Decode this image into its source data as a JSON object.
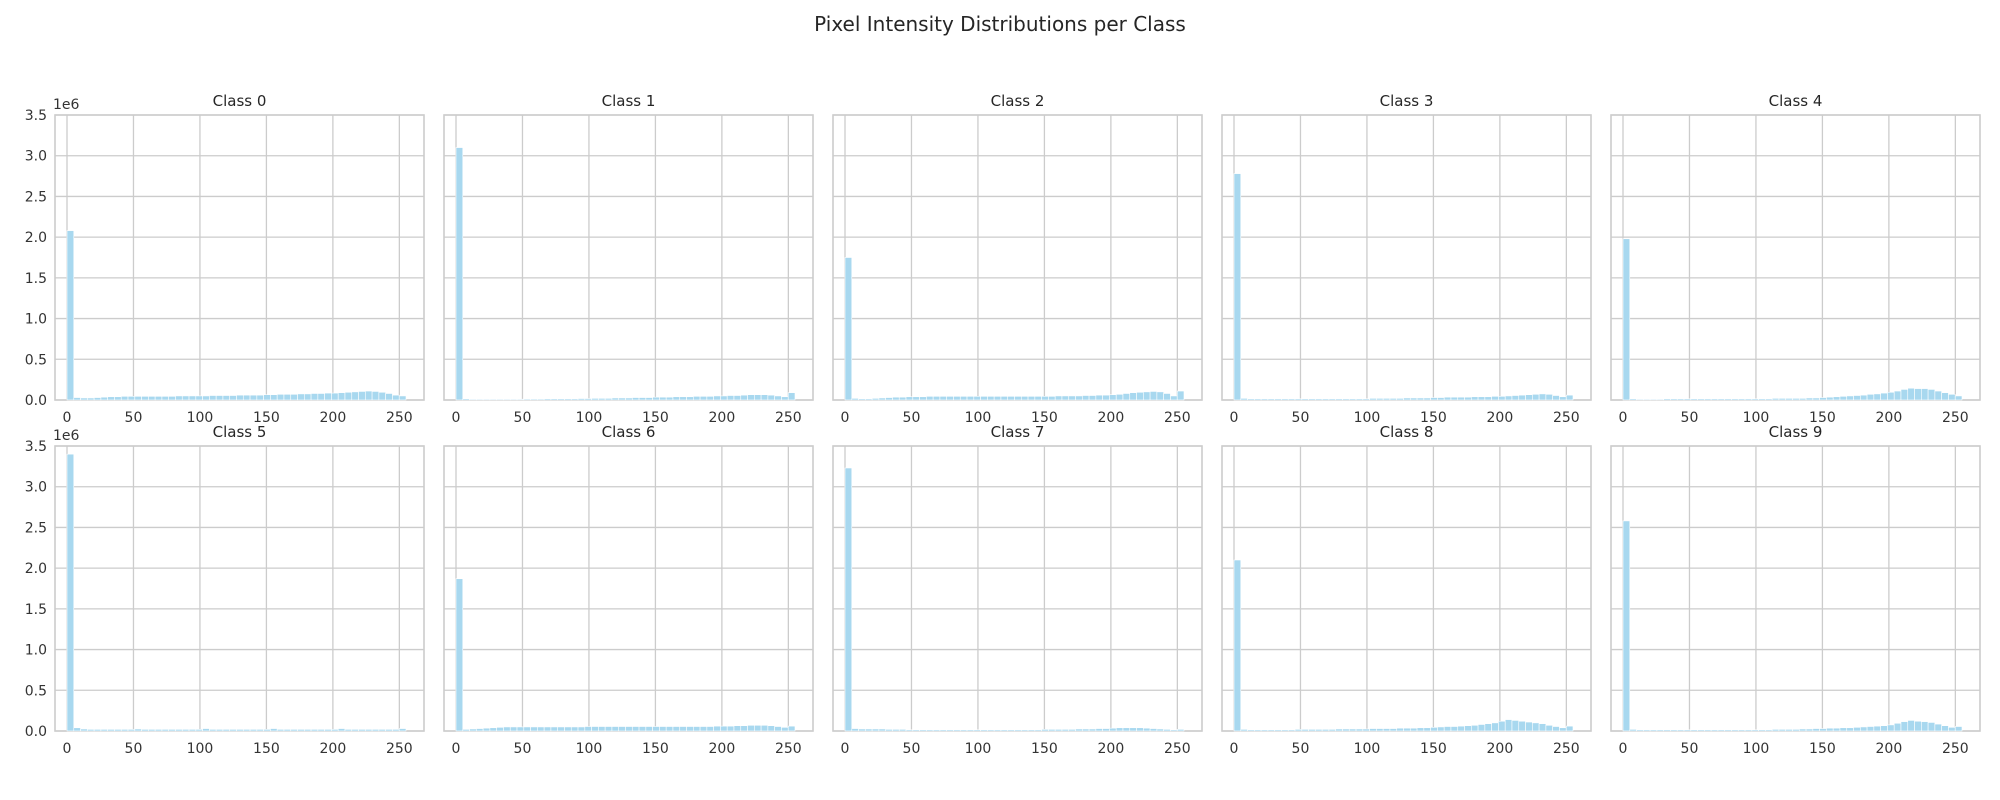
{
  "figure": {
    "title": "Pixel Intensity Distributions per Class"
  },
  "colors": {
    "bar": "#a8d8ef",
    "grid": "#cccccc",
    "frame": "#cccccc",
    "text": "#262626"
  },
  "chart_data": {
    "type": "bar",
    "grid": true,
    "bins": 50,
    "x_range": [
      0,
      255
    ],
    "y_range": [
      0,
      3500000
    ],
    "y_offset_label": "1e6",
    "x_ticks": [
      0,
      50,
      100,
      150,
      200,
      250
    ],
    "x_tick_labels": [
      "0",
      "50",
      "100",
      "150",
      "200",
      "250"
    ],
    "y_ticks": [
      0,
      500000,
      1000000,
      1500000,
      2000000,
      2500000,
      3000000,
      3500000
    ],
    "y_tick_labels": [
      "0.0",
      "0.5",
      "1.0",
      "1.5",
      "2.0",
      "2.5",
      "3.0",
      "3.5"
    ],
    "panels": [
      {
        "title": "Class 0",
        "values": [
          2080000,
          30000,
          25000,
          25000,
          30000,
          35000,
          40000,
          40000,
          45000,
          45000,
          45000,
          45000,
          45000,
          45000,
          45000,
          45000,
          50000,
          50000,
          50000,
          50000,
          50000,
          55000,
          55000,
          55000,
          55000,
          60000,
          60000,
          60000,
          60000,
          65000,
          65000,
          70000,
          70000,
          70000,
          75000,
          75000,
          80000,
          80000,
          85000,
          85000,
          90000,
          95000,
          100000,
          105000,
          110000,
          105000,
          95000,
          80000,
          60000,
          50000
        ]
      },
      {
        "title": "Class 1",
        "values": [
          3100000,
          15000,
          10000,
          10000,
          10000,
          10000,
          10000,
          10000,
          10000,
          10000,
          12000,
          12000,
          12000,
          15000,
          15000,
          15000,
          15000,
          15000,
          18000,
          18000,
          20000,
          20000,
          20000,
          25000,
          25000,
          25000,
          30000,
          30000,
          30000,
          35000,
          35000,
          35000,
          40000,
          40000,
          40000,
          45000,
          45000,
          45000,
          50000,
          50000,
          55000,
          55000,
          60000,
          65000,
          65000,
          65000,
          60000,
          50000,
          40000,
          90000
        ]
      },
      {
        "title": "Class 2",
        "values": [
          1750000,
          20000,
          15000,
          15000,
          20000,
          25000,
          30000,
          35000,
          35000,
          40000,
          40000,
          40000,
          45000,
          45000,
          45000,
          45000,
          45000,
          45000,
          45000,
          45000,
          45000,
          45000,
          45000,
          45000,
          45000,
          45000,
          45000,
          45000,
          45000,
          45000,
          45000,
          50000,
          50000,
          50000,
          50000,
          55000,
          55000,
          60000,
          60000,
          65000,
          70000,
          80000,
          90000,
          95000,
          100000,
          105000,
          100000,
          80000,
          50000,
          110000
        ]
      },
      {
        "title": "Class 3",
        "values": [
          2780000,
          20000,
          15000,
          15000,
          15000,
          15000,
          15000,
          15000,
          15000,
          15000,
          15000,
          15000,
          15000,
          15000,
          15000,
          15000,
          15000,
          15000,
          15000,
          15000,
          20000,
          20000,
          20000,
          20000,
          20000,
          25000,
          25000,
          25000,
          25000,
          30000,
          30000,
          35000,
          35000,
          35000,
          35000,
          40000,
          40000,
          40000,
          45000,
          45000,
          50000,
          55000,
          60000,
          65000,
          70000,
          75000,
          70000,
          55000,
          40000,
          60000
        ]
      },
      {
        "title": "Class 4",
        "values": [
          1980000,
          15000,
          10000,
          10000,
          10000,
          10000,
          15000,
          15000,
          15000,
          15000,
          15000,
          15000,
          15000,
          15000,
          15000,
          15000,
          15000,
          15000,
          15000,
          15000,
          15000,
          15000,
          20000,
          20000,
          20000,
          20000,
          20000,
          25000,
          25000,
          30000,
          35000,
          40000,
          45000,
          50000,
          55000,
          60000,
          70000,
          75000,
          85000,
          95000,
          110000,
          130000,
          145000,
          140000,
          140000,
          130000,
          110000,
          90000,
          70000,
          50000
        ]
      },
      {
        "title": "Class 5",
        "values": [
          3400000,
          40000,
          25000,
          20000,
          20000,
          20000,
          20000,
          20000,
          20000,
          20000,
          25000,
          20000,
          20000,
          20000,
          20000,
          20000,
          20000,
          20000,
          20000,
          20000,
          30000,
          20000,
          20000,
          20000,
          20000,
          20000,
          20000,
          20000,
          20000,
          20000,
          30000,
          20000,
          20000,
          20000,
          20000,
          20000,
          20000,
          20000,
          20000,
          20000,
          30000,
          20000,
          20000,
          20000,
          20000,
          20000,
          20000,
          20000,
          20000,
          30000
        ]
      },
      {
        "title": "Class 6",
        "values": [
          1870000,
          20000,
          25000,
          30000,
          35000,
          40000,
          45000,
          50000,
          50000,
          50000,
          50000,
          50000,
          50000,
          50000,
          50000,
          50000,
          50000,
          50000,
          50000,
          55000,
          55000,
          55000,
          55000,
          55000,
          55000,
          55000,
          55000,
          55000,
          55000,
          55000,
          55000,
          55000,
          55000,
          55000,
          55000,
          55000,
          55000,
          55000,
          60000,
          60000,
          60000,
          65000,
          65000,
          70000,
          70000,
          70000,
          65000,
          55000,
          45000,
          60000
        ]
      },
      {
        "title": "Class 7",
        "values": [
          3230000,
          30000,
          25000,
          25000,
          25000,
          25000,
          20000,
          20000,
          20000,
          15000,
          15000,
          15000,
          15000,
          15000,
          15000,
          15000,
          15000,
          15000,
          15000,
          15000,
          15000,
          15000,
          15000,
          15000,
          15000,
          15000,
          15000,
          15000,
          15000,
          20000,
          20000,
          20000,
          20000,
          20000,
          25000,
          25000,
          25000,
          30000,
          30000,
          35000,
          40000,
          40000,
          40000,
          40000,
          35000,
          30000,
          25000,
          20000,
          15000,
          20000
        ]
      },
      {
        "title": "Class 8",
        "values": [
          2100000,
          20000,
          15000,
          15000,
          15000,
          15000,
          15000,
          15000,
          15000,
          20000,
          20000,
          20000,
          20000,
          20000,
          20000,
          25000,
          25000,
          25000,
          25000,
          25000,
          30000,
          30000,
          30000,
          30000,
          35000,
          35000,
          35000,
          40000,
          40000,
          45000,
          50000,
          55000,
          55000,
          60000,
          65000,
          70000,
          80000,
          90000,
          100000,
          120000,
          140000,
          130000,
          120000,
          110000,
          100000,
          90000,
          70000,
          55000,
          40000,
          60000
        ]
      },
      {
        "title": "Class 9",
        "values": [
          2580000,
          20000,
          15000,
          15000,
          15000,
          15000,
          15000,
          15000,
          15000,
          15000,
          15000,
          15000,
          15000,
          15000,
          15000,
          15000,
          15000,
          15000,
          15000,
          15000,
          15000,
          15000,
          20000,
          20000,
          20000,
          20000,
          25000,
          25000,
          30000,
          30000,
          35000,
          35000,
          40000,
          40000,
          45000,
          50000,
          55000,
          60000,
          65000,
          75000,
          95000,
          115000,
          130000,
          120000,
          115000,
          105000,
          85000,
          65000,
          45000,
          55000
        ]
      }
    ]
  }
}
